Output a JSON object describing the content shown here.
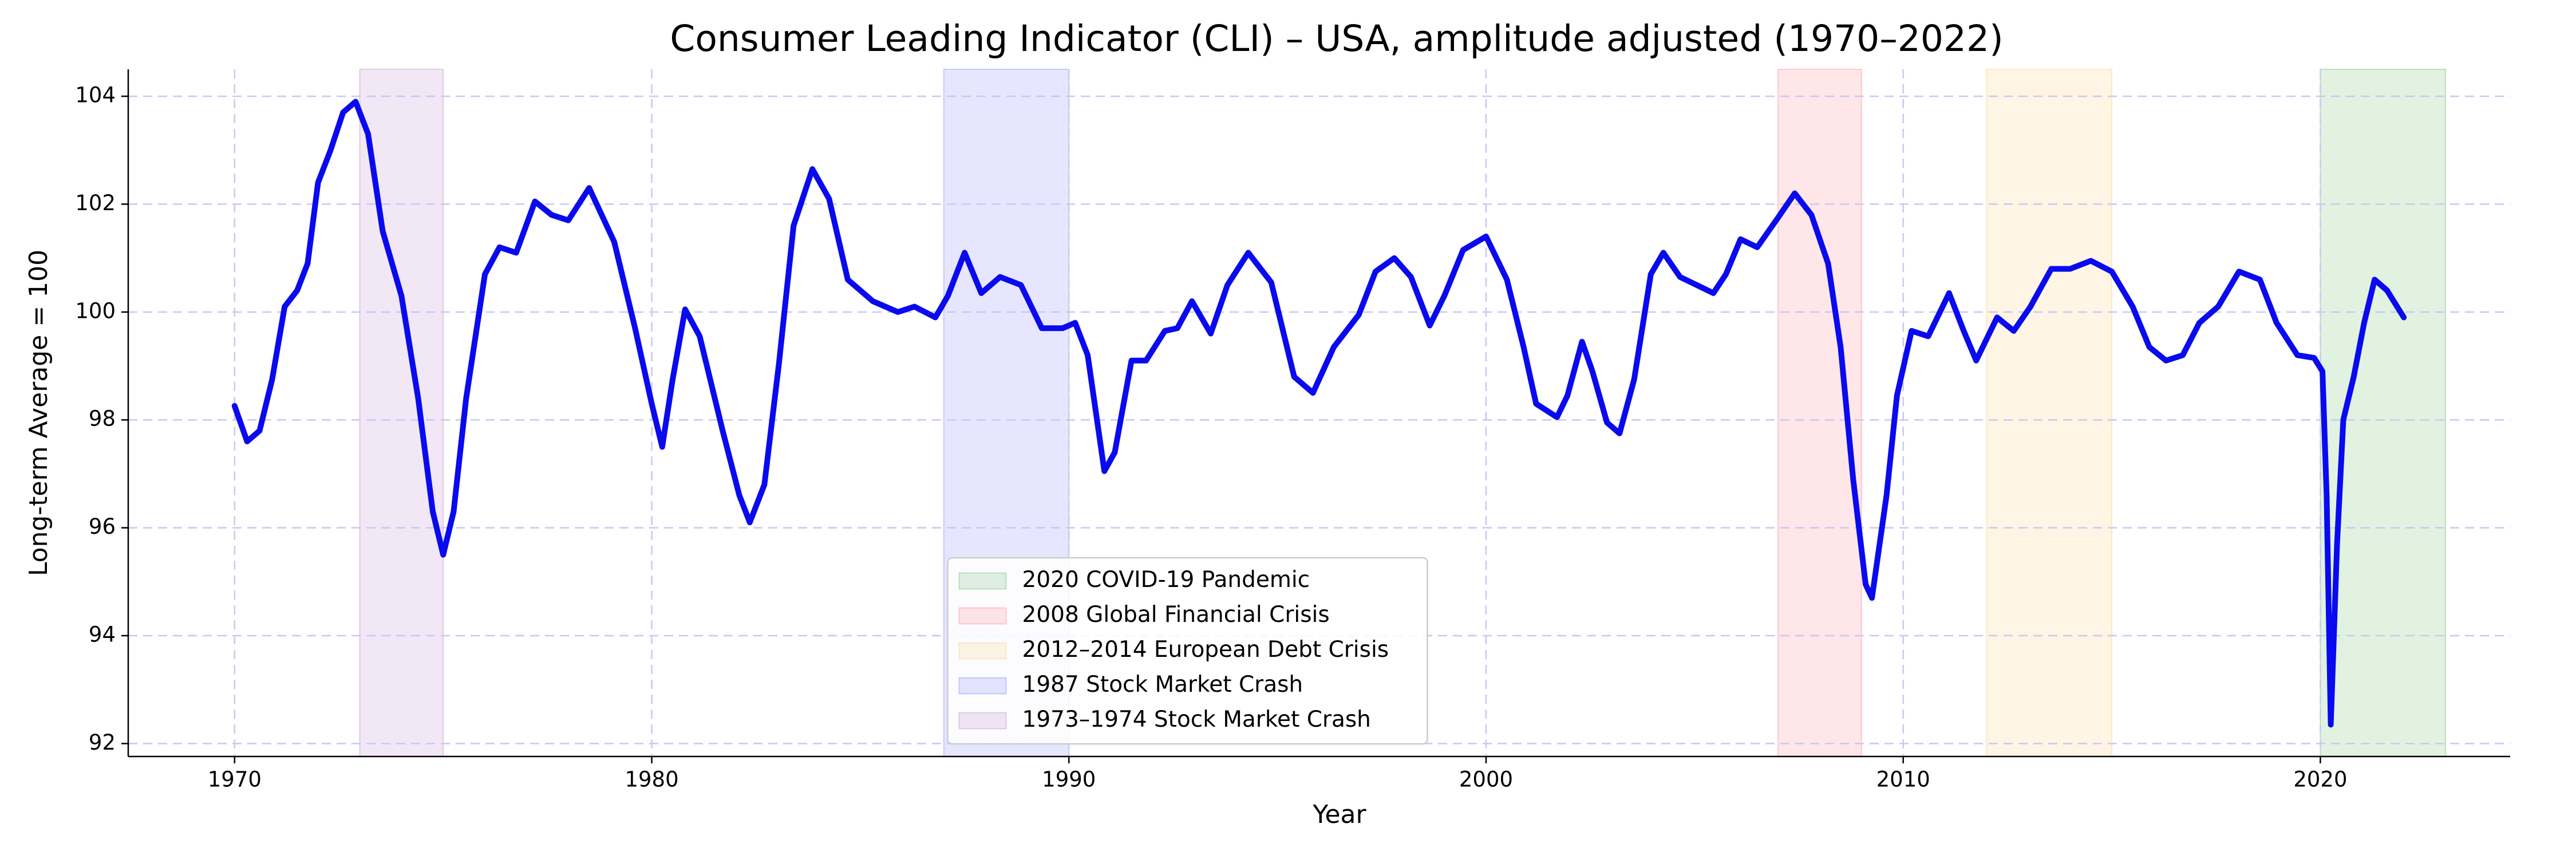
{
  "chart_data": {
    "type": "line",
    "title": "Consumer Leading Indicator (CLI) – USA, amplitude adjusted (1970–2022)",
    "x_label": "Year",
    "y_label": "Long-term Average = 100",
    "color": "#0a0aef",
    "x": [
      1970.0,
      1970.3,
      1970.6,
      1970.9,
      1971.2,
      1971.5,
      1971.75,
      1972.0,
      1972.3,
      1972.6,
      1972.9,
      1973.2,
      1973.55,
      1974.0,
      1974.4,
      1974.75,
      1975.0,
      1975.25,
      1975.55,
      1976.0,
      1976.35,
      1976.75,
      1977.2,
      1977.6,
      1978.0,
      1978.5,
      1979.1,
      1979.6,
      1980.0,
      1980.25,
      1980.5,
      1980.8,
      1981.15,
      1981.7,
      1982.1,
      1982.35,
      1982.7,
      1983.05,
      1983.4,
      1983.85,
      1984.25,
      1984.7,
      1985.3,
      1985.9,
      1986.3,
      1986.8,
      1987.1,
      1987.5,
      1987.9,
      1988.35,
      1988.85,
      1989.35,
      1989.85,
      1990.15,
      1990.45,
      1990.85,
      1991.1,
      1991.5,
      1991.85,
      1992.3,
      1992.6,
      1992.95,
      1993.4,
      1993.8,
      1994.3,
      1994.85,
      1995.4,
      1995.85,
      1996.35,
      1996.95,
      1997.35,
      1997.8,
      1998.2,
      1998.65,
      1999.0,
      1999.45,
      2000.0,
      2000.5,
      2000.9,
      2001.2,
      2001.7,
      2001.95,
      2002.3,
      2002.55,
      2002.9,
      2003.2,
      2003.55,
      2003.95,
      2004.25,
      2004.65,
      2005.05,
      2005.45,
      2005.75,
      2006.1,
      2006.5,
      2007.0,
      2007.4,
      2007.8,
      2008.2,
      2008.5,
      2008.8,
      2009.1,
      2009.25,
      2009.6,
      2009.85,
      2010.2,
      2010.6,
      2011.1,
      2011.45,
      2011.75,
      2012.25,
      2012.65,
      2013.05,
      2013.55,
      2014.0,
      2014.5,
      2015.0,
      2015.5,
      2015.9,
      2016.3,
      2016.7,
      2017.1,
      2017.55,
      2018.05,
      2018.55,
      2018.95,
      2019.45,
      2019.85,
      2020.05,
      2020.15,
      2020.25,
      2020.4,
      2020.55,
      2020.8,
      2021.05,
      2021.3,
      2021.6,
      2022.0
    ],
    "values": [
      98.26,
      97.6,
      97.8,
      98.75,
      100.1,
      100.4,
      100.9,
      102.4,
      103.0,
      103.7,
      103.9,
      103.3,
      101.5,
      100.3,
      98.4,
      96.3,
      95.5,
      96.3,
      98.4,
      100.7,
      101.2,
      101.1,
      102.05,
      101.8,
      101.7,
      102.3,
      101.3,
      99.7,
      98.3,
      97.5,
      98.75,
      100.05,
      99.55,
      97.8,
      96.6,
      96.1,
      96.8,
      99.05,
      101.6,
      102.65,
      102.1,
      100.6,
      100.2,
      100.0,
      100.1,
      99.9,
      100.3,
      101.1,
      100.35,
      100.65,
      100.5,
      99.7,
      99.7,
      99.8,
      99.2,
      97.05,
      97.4,
      99.1,
      99.1,
      99.65,
      99.7,
      100.2,
      99.6,
      100.5,
      101.1,
      100.55,
      98.8,
      98.5,
      99.35,
      99.95,
      100.75,
      101.0,
      100.65,
      99.75,
      100.3,
      101.15,
      101.4,
      100.6,
      99.35,
      98.3,
      98.05,
      98.45,
      99.45,
      98.9,
      97.95,
      97.75,
      98.75,
      100.7,
      101.1,
      100.65,
      100.5,
      100.35,
      100.7,
      101.35,
      101.2,
      101.75,
      102.2,
      101.8,
      100.9,
      99.35,
      96.9,
      94.95,
      94.7,
      96.6,
      98.45,
      99.65,
      99.55,
      100.35,
      99.65,
      99.1,
      99.9,
      99.65,
      100.1,
      100.8,
      100.8,
      100.95,
      100.75,
      100.1,
      99.35,
      99.1,
      99.2,
      99.8,
      100.1,
      100.75,
      100.6,
      99.8,
      99.2,
      99.15,
      98.9,
      96.6,
      92.35,
      95.7,
      98.0,
      98.8,
      99.8,
      100.6,
      100.4,
      99.9
    ],
    "spans": [
      {
        "name": "2020 COVID-19 Pandemic",
        "start": 2020,
        "end": 2023,
        "color": "#2ca02c"
      },
      {
        "name": "2008 Global Financial Crisis",
        "start": 2007,
        "end": 2009,
        "color": "#ff4d5a"
      },
      {
        "name": "2012–2014 European Debt Crisis",
        "start": 2012,
        "end": 2015,
        "color": "#f5b942"
      },
      {
        "name": "1987 Stock Market Crash",
        "start": 1987,
        "end": 1990,
        "color": "#4d4dff"
      },
      {
        "name": "1973–1974 Stock Market Crash",
        "start": 1973,
        "end": 1975,
        "color": "#a055b0"
      }
    ],
    "xlim": [
      1967.45,
      2024.55
    ],
    "ylim": [
      91.76,
      104.5
    ],
    "xticks": [
      1970,
      1980,
      1990,
      2000,
      2010,
      2020
    ],
    "yticks": [
      92,
      94,
      96,
      98,
      100,
      102,
      104
    ],
    "grid": true,
    "legend": "lower center"
  }
}
